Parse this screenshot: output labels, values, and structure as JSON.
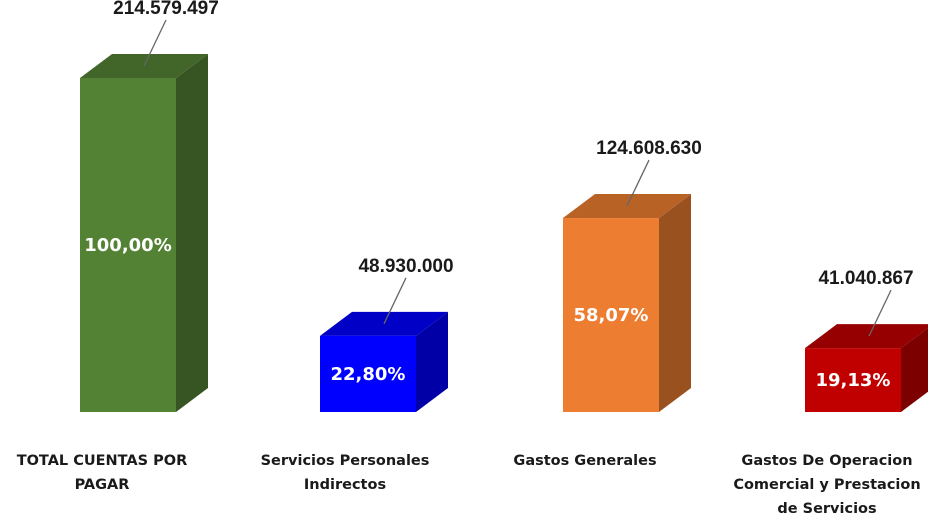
{
  "chart_data": {
    "type": "bar",
    "style": "3d-column",
    "categories": [
      [
        "TOTAL CUENTAS POR",
        "PAGAR"
      ],
      [
        "Servicios Personales",
        "Indirectos"
      ],
      [
        "Gastos Generales"
      ],
      [
        "Gastos De Operacion",
        "Comercial y Prestacion",
        "de Servicios"
      ]
    ],
    "values": [
      214579497,
      48930000,
      124608630,
      41040867
    ],
    "value_labels": [
      "214.579.497",
      "48.930.000",
      "124.608.630",
      "41.040.867"
    ],
    "percent_labels": [
      "100,00%",
      "22,80%",
      "58,07%",
      "19,13%"
    ],
    "colors": [
      "#548235",
      "#0000FF",
      "#ED7D31",
      "#C00000"
    ],
    "ylim": [
      0,
      214579497
    ],
    "grid": false,
    "legend": "none"
  }
}
